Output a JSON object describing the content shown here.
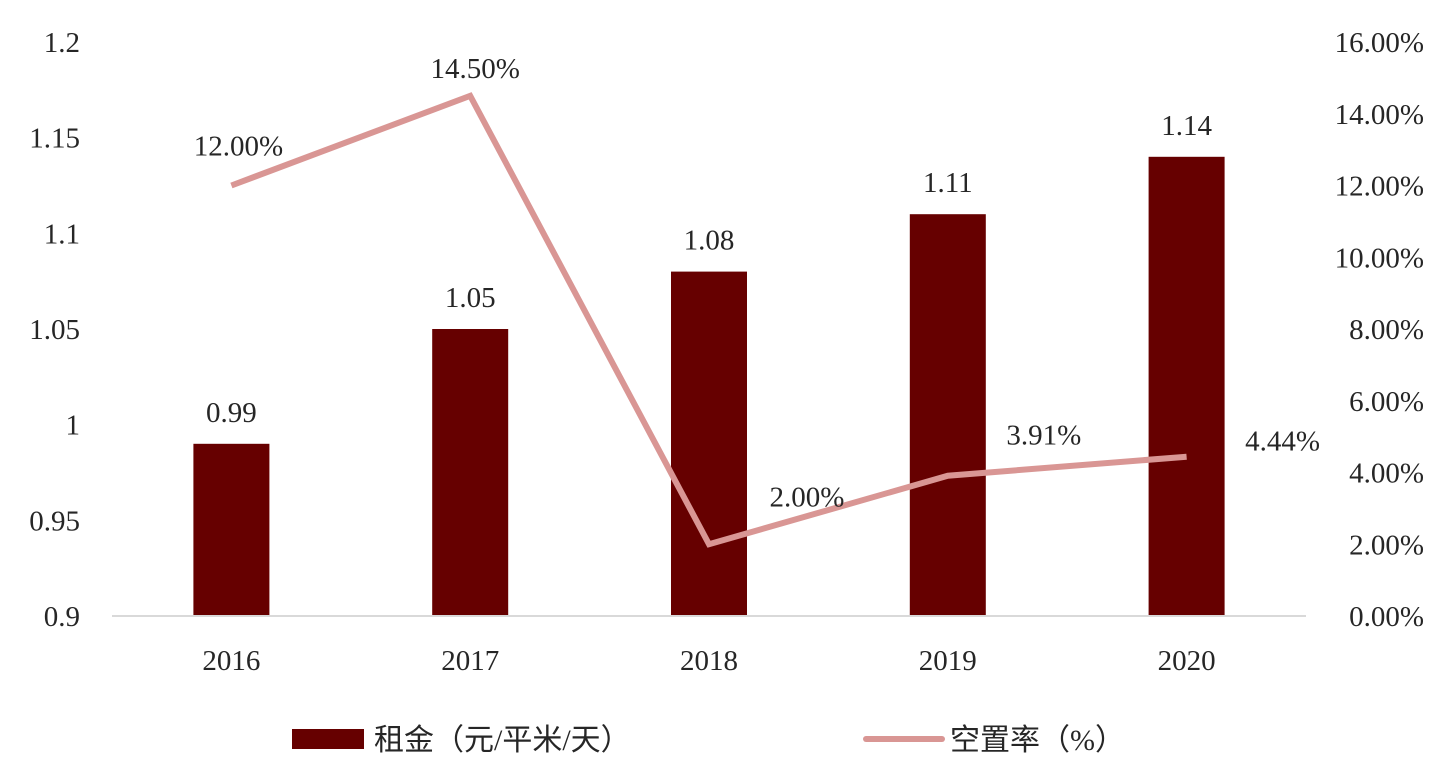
{
  "chart_data": {
    "type": "bar",
    "categories": [
      "2016",
      "2017",
      "2018",
      "2019",
      "2020"
    ],
    "series": [
      {
        "name": "租金（元/平米/天）",
        "type": "bar",
        "axis": "left",
        "values": [
          0.99,
          1.05,
          1.08,
          1.11,
          1.14
        ],
        "labels": [
          "0.99",
          "1.05",
          "1.08",
          "1.11",
          "1.14"
        ],
        "color": "#660000"
      },
      {
        "name": "空置率（%）",
        "type": "line",
        "axis": "right",
        "values": [
          12.0,
          14.5,
          2.0,
          3.91,
          4.44
        ],
        "labels": [
          "12.00%",
          "14.50%",
          "2.00%",
          "3.91%",
          "4.44%"
        ],
        "color": "#d99694"
      }
    ],
    "left_axis": {
      "ylim": [
        0.9,
        1.2
      ],
      "ticks": [
        0.9,
        0.95,
        1.0,
        1.05,
        1.1,
        1.15,
        1.2
      ],
      "tick_labels": [
        "0.9",
        "0.95",
        "1",
        "1.05",
        "1.1",
        "1.15",
        "1.2"
      ]
    },
    "right_axis": {
      "ylim": [
        0,
        16
      ],
      "ticks": [
        0,
        2,
        4,
        6,
        8,
        10,
        12,
        14,
        16
      ],
      "tick_labels": [
        "0.00%",
        "2.00%",
        "4.00%",
        "6.00%",
        "8.00%",
        "10.00%",
        "12.00%",
        "14.00%",
        "16.00%"
      ]
    },
    "grid": false,
    "legend": "bottom"
  }
}
